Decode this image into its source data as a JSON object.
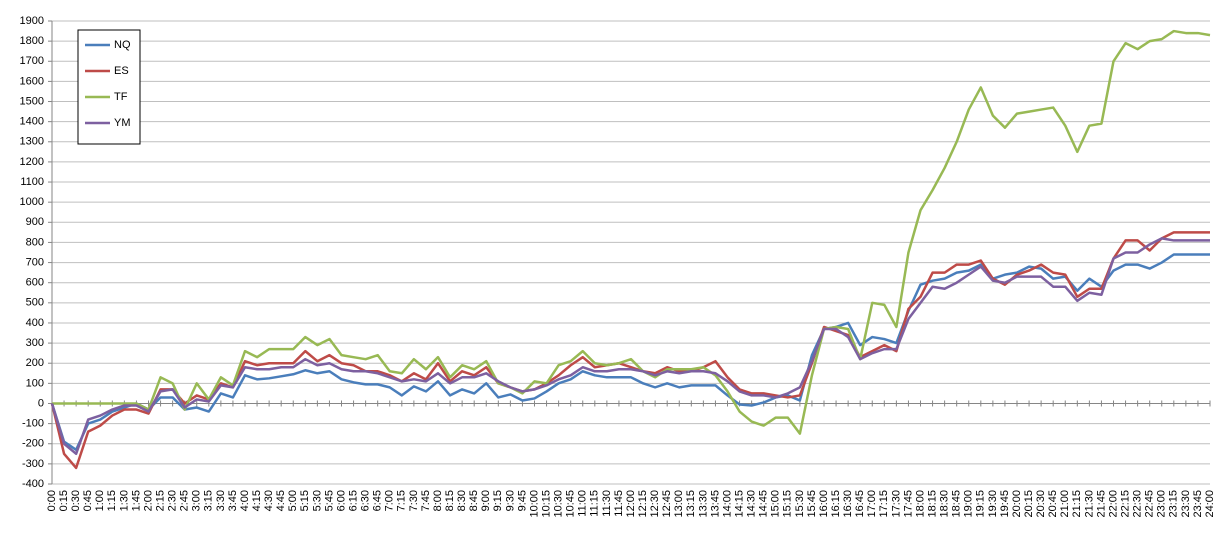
{
  "chart_data": {
    "type": "line",
    "categories": [
      "0:00",
      "0:15",
      "0:30",
      "0:45",
      "1:00",
      "1:15",
      "1:30",
      "1:45",
      "2:00",
      "2:15",
      "2:30",
      "2:45",
      "3:00",
      "3:15",
      "3:30",
      "3:45",
      "4:00",
      "4:15",
      "4:30",
      "4:45",
      "5:00",
      "5:15",
      "5:30",
      "5:45",
      "6:00",
      "6:15",
      "6:30",
      "6:45",
      "7:00",
      "7:15",
      "7:30",
      "7:45",
      "8:00",
      "8:15",
      "8:30",
      "8:45",
      "9:00",
      "9:15",
      "9:30",
      "9:45",
      "10:00",
      "10:15",
      "10:30",
      "10:45",
      "11:00",
      "11:15",
      "11:30",
      "11:45",
      "12:00",
      "12:15",
      "12:30",
      "12:45",
      "13:00",
      "13:15",
      "13:30",
      "13:45",
      "14:00",
      "14:15",
      "14:30",
      "14:45",
      "15:00",
      "15:15",
      "15:30",
      "15:45",
      "16:00",
      "16:15",
      "16:30",
      "16:45",
      "17:00",
      "17:15",
      "17:30",
      "17:45",
      "18:00",
      "18:15",
      "18:30",
      "18:45",
      "19:00",
      "19:15",
      "19:30",
      "19:45",
      "20:00",
      "20:15",
      "20:30",
      "20:45",
      "21:00",
      "21:15",
      "21:30",
      "21:45",
      "22:00",
      "22:15",
      "22:30",
      "22:45",
      "23:00",
      "23:15",
      "23:30",
      "23:45",
      "24:00"
    ],
    "series": [
      {
        "name": "NQ",
        "color": "#4a7ebb",
        "values": [
          0,
          -190,
          -230,
          -100,
          -80,
          -40,
          -20,
          0,
          -30,
          30,
          30,
          -30,
          -20,
          -40,
          50,
          30,
          140,
          120,
          125,
          135,
          145,
          165,
          150,
          160,
          120,
          105,
          95,
          95,
          80,
          40,
          85,
          60,
          110,
          40,
          70,
          50,
          100,
          30,
          45,
          15,
          25,
          60,
          100,
          120,
          160,
          140,
          130,
          130,
          130,
          100,
          80,
          100,
          80,
          90,
          90,
          90,
          40,
          -5,
          -10,
          5,
          30,
          40,
          15,
          240,
          370,
          380,
          400,
          290,
          330,
          320,
          300,
          460,
          590,
          610,
          620,
          650,
          660,
          690,
          620,
          640,
          650,
          680,
          670,
          620,
          630,
          560,
          620,
          580,
          660,
          690,
          690,
          670,
          700,
          740,
          740,
          740,
          740
        ]
      },
      {
        "name": "ES",
        "color": "#be4b48",
        "values": [
          0,
          -250,
          -320,
          -140,
          -110,
          -60,
          -30,
          -30,
          -50,
          70,
          70,
          0,
          40,
          20,
          100,
          80,
          210,
          190,
          200,
          200,
          200,
          260,
          210,
          240,
          200,
          190,
          160,
          160,
          140,
          110,
          150,
          120,
          200,
          110,
          160,
          140,
          180,
          100,
          80,
          60,
          70,
          100,
          140,
          190,
          230,
          180,
          190,
          200,
          180,
          160,
          150,
          180,
          160,
          160,
          180,
          210,
          130,
          70,
          50,
          50,
          40,
          30,
          40,
          200,
          380,
          360,
          340,
          230,
          260,
          290,
          260,
          470,
          530,
          650,
          650,
          690,
          690,
          710,
          620,
          590,
          640,
          660,
          690,
          650,
          640,
          530,
          570,
          570,
          720,
          810,
          810,
          760,
          820,
          850,
          850,
          850,
          850
        ]
      },
      {
        "name": "TF",
        "color": "#98b954",
        "values": [
          0,
          0,
          0,
          0,
          0,
          0,
          0,
          0,
          -30,
          130,
          100,
          -30,
          100,
          20,
          130,
          90,
          260,
          230,
          270,
          270,
          270,
          330,
          290,
          320,
          240,
          230,
          220,
          240,
          160,
          150,
          220,
          170,
          230,
          130,
          190,
          170,
          210,
          100,
          80,
          50,
          110,
          100,
          190,
          210,
          260,
          200,
          190,
          200,
          220,
          160,
          130,
          170,
          170,
          170,
          180,
          140,
          60,
          -40,
          -90,
          -110,
          -70,
          -70,
          -150,
          140,
          370,
          380,
          370,
          220,
          500,
          490,
          380,
          750,
          960,
          1060,
          1170,
          1300,
          1460,
          1570,
          1430,
          1370,
          1440,
          1450,
          1460,
          1470,
          1380,
          1250,
          1380,
          1390,
          1700,
          1790,
          1760,
          1800,
          1810,
          1850,
          1840,
          1840,
          1830
        ]
      },
      {
        "name": "YM",
        "color": "#7d60a0",
        "values": [
          0,
          -200,
          -250,
          -80,
          -60,
          -30,
          -10,
          -10,
          -40,
          60,
          70,
          -20,
          20,
          10,
          90,
          80,
          180,
          170,
          170,
          180,
          180,
          220,
          190,
          200,
          170,
          160,
          160,
          150,
          130,
          110,
          120,
          110,
          150,
          100,
          130,
          130,
          150,
          110,
          80,
          60,
          70,
          90,
          120,
          140,
          180,
          160,
          160,
          170,
          170,
          160,
          140,
          160,
          150,
          160,
          160,
          150,
          110,
          60,
          40,
          40,
          30,
          50,
          80,
          210,
          370,
          370,
          330,
          220,
          250,
          270,
          270,
          420,
          500,
          580,
          570,
          600,
          640,
          680,
          610,
          600,
          630,
          630,
          630,
          580,
          580,
          510,
          550,
          540,
          720,
          750,
          750,
          790,
          820,
          810,
          810,
          810,
          810
        ]
      }
    ],
    "ylim": [
      -400,
      1900
    ],
    "yticks": [
      -400,
      -300,
      -200,
      -100,
      0,
      100,
      200,
      300,
      400,
      500,
      600,
      700,
      800,
      900,
      1000,
      1100,
      1200,
      1300,
      1400,
      1500,
      1600,
      1700,
      1800,
      1900
    ],
    "grid": true,
    "legend": "top-left"
  }
}
